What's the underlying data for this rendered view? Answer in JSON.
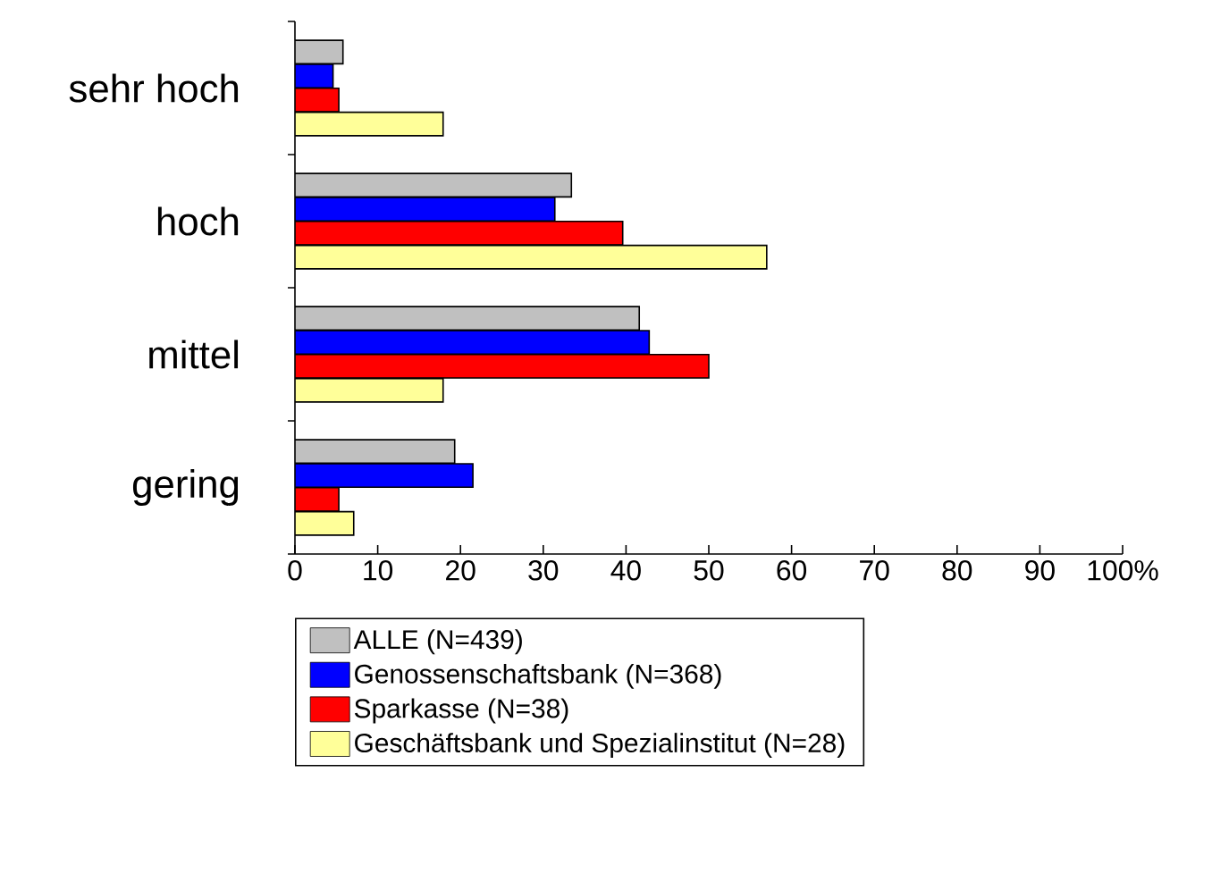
{
  "chart_data": {
    "type": "bar",
    "orientation": "horizontal",
    "categories": [
      "sehr hoch",
      "hoch",
      "mittel",
      "gering"
    ],
    "series": [
      {
        "name": "ALLE (N=439)",
        "color": "#c0c0c0",
        "values": [
          5.8,
          33.4,
          41.6,
          19.3
        ]
      },
      {
        "name": "Genossenschaftsbank (N=368)",
        "color": "#0000ff",
        "values": [
          4.6,
          31.4,
          42.8,
          21.5
        ]
      },
      {
        "name": "Sparkasse (N=38)",
        "color": "#ff0000",
        "values": [
          5.3,
          39.6,
          50.0,
          5.3
        ]
      },
      {
        "name": "Geschäftsbank und Spezialinstitut (N=28)",
        "color": "#ffff99",
        "values": [
          17.9,
          57.0,
          17.9,
          7.1
        ]
      }
    ],
    "xlim": [
      0,
      100
    ],
    "xticks": [
      0,
      10,
      20,
      30,
      40,
      50,
      60,
      70,
      80,
      90,
      {
        "value": 100,
        "label": "100%"
      }
    ],
    "grid": false,
    "legend": "bottom"
  }
}
